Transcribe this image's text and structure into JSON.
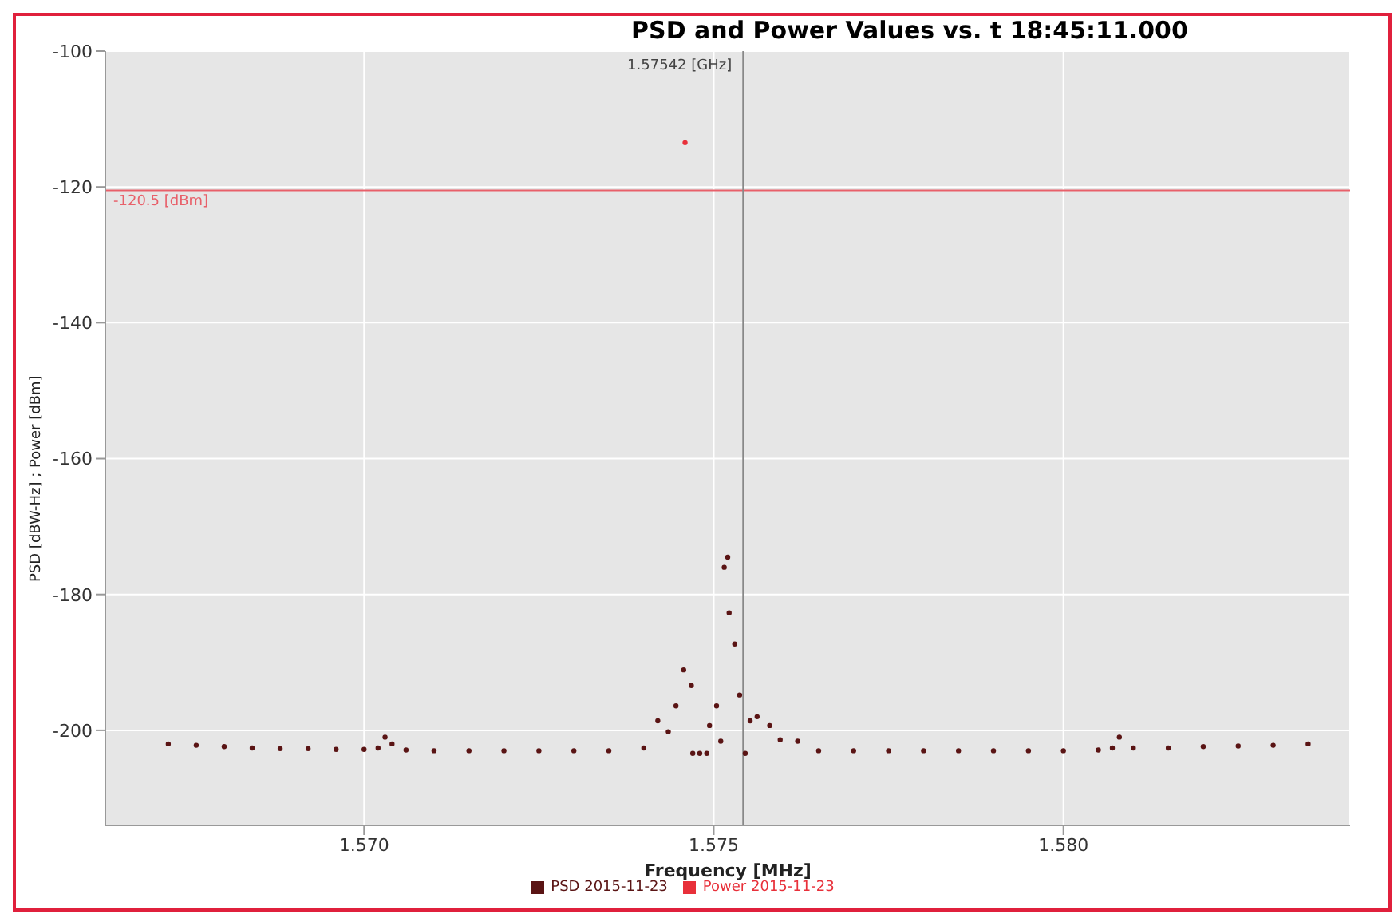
{
  "chart_data": {
    "type": "scatter",
    "title": "PSD and Power Values vs. t 18:45:11.000",
    "xlabel": "Frequency [MHz]",
    "ylabel": "PSD [dBW-Hz] ; Power [dBm]",
    "xlim": [
      1.5663,
      1.5841
    ],
    "xticks": [
      {
        "value": 1.57,
        "label": "1.570"
      },
      {
        "value": 1.575,
        "label": "1.575"
      },
      {
        "value": 1.58,
        "label": "1.580"
      }
    ],
    "ylim": [
      -214,
      -100
    ],
    "yticks": [
      -200,
      -180,
      -160,
      -140,
      -120,
      -100
    ],
    "grid": true,
    "legend": "bottom",
    "marker": "circle",
    "ref_lines": [
      {
        "axis": "y",
        "value": -120.5,
        "label": "-120.5 [dBm]",
        "color": "#e8606a"
      },
      {
        "axis": "x",
        "value": 1.57542,
        "label": "1.57542 [GHz]",
        "color": "#888888"
      }
    ],
    "series": [
      {
        "name": "PSD 2015-11-23",
        "color": "#5a1414",
        "x": [
          1.5672,
          1.5676,
          1.568,
          1.5684,
          1.5688,
          1.5692,
          1.5696,
          1.57,
          1.5702,
          1.5703,
          1.5704,
          1.5706,
          1.571,
          1.5715,
          1.572,
          1.5725,
          1.573,
          1.5735,
          1.574,
          1.5742,
          1.57435,
          1.57446,
          1.57457,
          1.57468,
          1.5747,
          1.5748,
          1.5749,
          1.57494,
          1.57504,
          1.5751,
          1.57515,
          1.5752,
          1.57522,
          1.5753,
          1.57537,
          1.57545,
          1.57552,
          1.57562,
          1.5758,
          1.57595,
          1.5762,
          1.5765,
          1.577,
          1.5775,
          1.578,
          1.5785,
          1.579,
          1.5795,
          1.58,
          1.5805,
          1.5807,
          1.5808,
          1.581,
          1.5815,
          1.582,
          1.5825,
          1.583,
          1.5835
        ],
        "values": [
          -202,
          -202.2,
          -202.4,
          -202.6,
          -202.7,
          -202.7,
          -202.8,
          -202.8,
          -202.6,
          -201,
          -202,
          -202.9,
          -203,
          -203,
          -203,
          -203,
          -203,
          -203,
          -202.6,
          -198.6,
          -200.2,
          -196.4,
          -191.1,
          -193.4,
          -203.4,
          -203.4,
          -203.4,
          -199.3,
          -196.4,
          -201.6,
          -176,
          -174.5,
          -182.7,
          -187.3,
          -194.8,
          -203.4,
          -198.6,
          -198,
          -199.3,
          -201.4,
          -201.6,
          -203,
          -203,
          -203,
          -203,
          -203,
          -203,
          -203,
          -203,
          -202.9,
          -202.6,
          -201,
          -202.6,
          -202.6,
          -202.4,
          -202.3,
          -202.2,
          -202
        ]
      },
      {
        "name": "Power 2015-11-23",
        "color": "#e8303a",
        "x": [
          1.57459
        ],
        "values": [
          -113.5
        ]
      }
    ]
  }
}
